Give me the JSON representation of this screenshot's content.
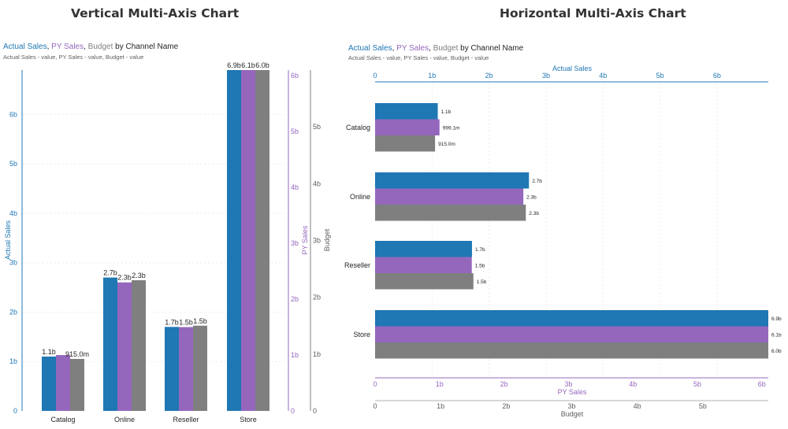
{
  "titles": {
    "left": "Vertical Multi-Axis Chart",
    "right": "Horizontal Multi-Axis Chart"
  },
  "subtitle": {
    "actual": "Actual Sales",
    "py": "PY Sales",
    "budget": "Budget",
    "sep": ", ",
    "by": " by Channel Name",
    "note": "Actual Sales - value, PY Sales - value, Budget - value"
  },
  "colors": {
    "actual": "#1f77b4",
    "py": "#9467bd",
    "budget": "#7f7f7f"
  },
  "chart_data": [
    {
      "type": "bar",
      "orientation": "vertical",
      "title": "Vertical Multi-Axis Chart",
      "categories": [
        "Catalog",
        "Online",
        "Reseller",
        "Store"
      ],
      "series": [
        {
          "name": "Actual Sales",
          "values": [
            1.1,
            2.7,
            1.7,
            6.9
          ],
          "labels": [
            "1.1b",
            "2.7b",
            "1.7b",
            "6.9b"
          ],
          "axis": "Actual Sales",
          "color": "#1f77b4"
        },
        {
          "name": "PY Sales",
          "values": [
            0.9991,
            2.3,
            1.5,
            6.1
          ],
          "labels": [
            "",
            "2.3b",
            "1.5b",
            "6.1b"
          ],
          "axis": "PY Sales",
          "color": "#9467bd"
        },
        {
          "name": "Budget",
          "values": [
            0.915,
            2.3,
            1.5,
            6.0
          ],
          "labels": [
            "915.0m",
            "2.3b",
            "1.5b",
            "6.0b"
          ],
          "axis": "Budget",
          "color": "#7f7f7f"
        }
      ],
      "axes": [
        {
          "label": "Actual Sales",
          "position": "left",
          "range": [
            0,
            6.9
          ],
          "ticks": [
            "0",
            "1b",
            "2b",
            "3b",
            "4b",
            "5b",
            "6b"
          ]
        },
        {
          "label": "PY Sales",
          "position": "right",
          "range": [
            0,
            6.1
          ],
          "ticks": [
            "0",
            "1b",
            "2b",
            "3b",
            "4b",
            "5b",
            "6b"
          ]
        },
        {
          "label": "Budget",
          "position": "right-outer",
          "range": [
            0,
            6.0
          ],
          "ticks": [
            "0",
            "1b",
            "2b",
            "3b",
            "4b",
            "5b"
          ]
        }
      ],
      "grid": true
    },
    {
      "type": "bar",
      "orientation": "horizontal",
      "title": "Horizontal Multi-Axis Chart",
      "categories": [
        "Catalog",
        "Online",
        "Reseller",
        "Store"
      ],
      "series": [
        {
          "name": "Actual Sales",
          "values": [
            1.1,
            2.7,
            1.7,
            6.9
          ],
          "labels": [
            "1.1b",
            "2.7b",
            "1.7b",
            "6.9b"
          ],
          "axis": "Actual Sales",
          "color": "#1f77b4"
        },
        {
          "name": "PY Sales",
          "values": [
            0.9991,
            2.3,
            1.5,
            6.1
          ],
          "labels": [
            "999.1m",
            "2.3b",
            "1.5b",
            "6.1b"
          ],
          "axis": "PY Sales",
          "color": "#9467bd"
        },
        {
          "name": "Budget",
          "values": [
            0.915,
            2.3,
            1.5,
            6.0
          ],
          "labels": [
            "915.0m",
            "2.3b",
            "1.5b",
            "6.0b"
          ],
          "axis": "Budget",
          "color": "#7f7f7f"
        }
      ],
      "axes": [
        {
          "label": "Actual Sales",
          "position": "top",
          "range": [
            0,
            6.9
          ],
          "ticks": [
            "0",
            "1b",
            "2b",
            "3b",
            "4b",
            "5b",
            "6b"
          ]
        },
        {
          "label": "PY Sales",
          "position": "bottom",
          "range": [
            0,
            6.1
          ],
          "ticks": [
            "0",
            "1b",
            "2b",
            "3b",
            "4b",
            "5b",
            "6b"
          ]
        },
        {
          "label": "Budget",
          "position": "bottom-outer",
          "range": [
            0,
            6.0
          ],
          "ticks": [
            "0",
            "1b",
            "2b",
            "3b",
            "4b",
            "5b"
          ]
        }
      ],
      "grid": true
    }
  ]
}
